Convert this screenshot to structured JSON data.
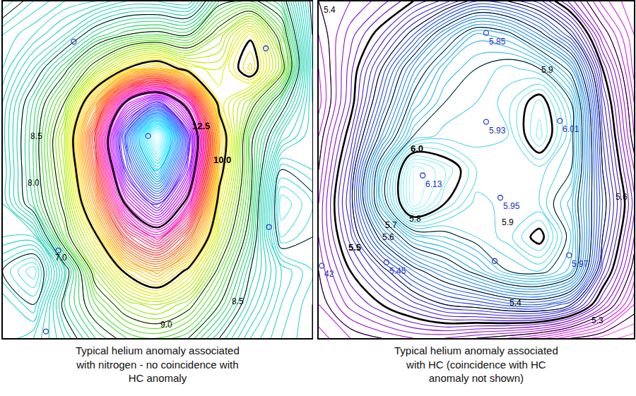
{
  "chart_data": [
    {
      "type": "contour",
      "caption": "Typical helium anomaly associated with nitrogen - no coincidence with HC anomaly",
      "xlim": [
        0,
        10
      ],
      "ylim": [
        0,
        10
      ],
      "tick_labels": false,
      "x": [
        0,
        1,
        2,
        3,
        4,
        5,
        6,
        7,
        8,
        9,
        10
      ],
      "y": [
        0,
        1,
        2,
        3,
        4,
        5,
        6,
        7,
        8,
        9,
        10
      ],
      "z": [
        [
          7.2,
          7.4,
          7.8,
          8.3,
          8.6,
          8.7,
          8.5,
          8.0,
          7.5,
          7.2,
          7.0
        ],
        [
          7.3,
          7.0,
          8.1,
          8.7,
          9.2,
          9.4,
          9.1,
          8.5,
          7.8,
          7.3,
          7.0
        ],
        [
          7.0,
          6.6,
          7.8,
          9.2,
          10.1,
          10.6,
          9.9,
          8.9,
          8.0,
          7.4,
          7.1
        ],
        [
          7.4,
          7.4,
          8.8,
          9.9,
          11.4,
          12.1,
          11.1,
          9.4,
          8.3,
          6.8,
          7.0
        ],
        [
          7.5,
          8.2,
          9.1,
          10.7,
          12.6,
          13.5,
          12.3,
          9.8,
          8.5,
          6.6,
          6.9
        ],
        [
          7.5,
          8.3,
          9.3,
          11.2,
          13.5,
          14.9,
          13.1,
          10.2,
          8.6,
          7.0,
          7.2
        ],
        [
          7.55,
          8.3,
          9.4,
          11.5,
          13.9,
          16.0,
          13.4,
          10.4,
          8.6,
          7.6,
          7.2
        ],
        [
          7.5,
          8.2,
          9.0,
          10.6,
          12.6,
          13.4,
          12.2,
          9.8,
          9.2,
          8.2,
          7.2
        ],
        [
          7.3,
          7.8,
          8.4,
          9.2,
          10.0,
          10.4,
          9.8,
          9.6,
          10.25,
          9.2,
          7.1
        ],
        [
          7.2,
          7.4,
          7.7,
          8.2,
          8.5,
          8.6,
          8.5,
          9.2,
          9.95,
          8.8,
          7.0
        ],
        [
          6.8,
          7.1,
          7.3,
          7.4,
          7.6,
          7.6,
          7.5,
          8.4,
          8.6,
          8.2,
          6.9
        ]
      ],
      "zlim": [
        6.0,
        16.0
      ],
      "levels": {
        "start": 6.0,
        "end": 16.0,
        "size": 0.1
      },
      "major_levels": [
        10.0,
        12.5
      ],
      "black_levels": [
        7.0,
        8.0,
        8.5,
        9.0
      ],
      "contour_labels": [
        {
          "value": 12.5,
          "label": "12.5",
          "x": 6.4,
          "y": 6.3
        },
        {
          "value": 10.0,
          "label": "10.0",
          "x": 7.1,
          "y": 5.3
        },
        {
          "value": 8.0,
          "label": "8.0",
          "x": 1.0,
          "y": 4.6
        },
        {
          "value": 8.5,
          "label": "8.5",
          "x": 1.1,
          "y": 6.0
        },
        {
          "value": 7.0,
          "label": "7.0",
          "x": 1.9,
          "y": 2.4
        },
        {
          "value": 9.0,
          "label": "9.0",
          "x": 5.3,
          "y": 0.4
        },
        {
          "value": 8.5,
          "label": "8.5",
          "x": 7.6,
          "y": 1.1
        }
      ],
      "points": [
        {
          "x": 8.5,
          "y": 8.6
        },
        {
          "x": 4.7,
          "y": 6.0
        },
        {
          "x": 2.3,
          "y": 8.8
        },
        {
          "x": 1.8,
          "y": 2.6
        },
        {
          "x": 8.6,
          "y": 3.3
        },
        {
          "x": 1.4,
          "y": 0.2
        }
      ]
    },
    {
      "type": "contour",
      "caption": "Typical helium anomaly associated with HC (coincidence with HC anomaly not shown)",
      "xlim": [
        0,
        10
      ],
      "ylim": [
        0,
        10
      ],
      "tick_labels": false,
      "x": [
        0,
        1,
        2,
        3,
        4,
        5,
        6,
        7,
        8,
        9,
        10
      ],
      "y": [
        0,
        1,
        2,
        3,
        4,
        5,
        6,
        7,
        8,
        9,
        10
      ],
      "z": [
        [
          5.35,
          5.38,
          5.4,
          5.42,
          5.42,
          5.4,
          5.38,
          5.35,
          5.3,
          5.27,
          5.25
        ],
        [
          5.38,
          5.45,
          5.5,
          5.55,
          5.6,
          5.62,
          5.65,
          5.66,
          5.6,
          5.45,
          5.32
        ],
        [
          5.4,
          5.5,
          5.58,
          5.68,
          5.75,
          5.82,
          5.9,
          5.92,
          5.85,
          5.55,
          5.38
        ],
        [
          5.42,
          5.55,
          5.72,
          5.85,
          5.88,
          5.92,
          5.95,
          6.02,
          5.88,
          5.6,
          5.42
        ],
        [
          5.42,
          5.58,
          5.86,
          6.1,
          6.0,
          5.93,
          5.95,
          5.94,
          5.85,
          5.62,
          5.45
        ],
        [
          5.4,
          5.56,
          5.85,
          6.1,
          6.04,
          5.96,
          5.95,
          5.95,
          5.9,
          5.6,
          5.42
        ],
        [
          5.38,
          5.52,
          5.72,
          5.9,
          5.93,
          5.93,
          5.94,
          6.05,
          5.92,
          5.58,
          5.38
        ],
        [
          5.35,
          5.48,
          5.65,
          5.82,
          5.9,
          5.92,
          5.95,
          6.03,
          5.9,
          5.55,
          5.36
        ],
        [
          5.36,
          5.47,
          5.6,
          5.75,
          5.86,
          5.9,
          5.93,
          5.9,
          5.78,
          5.5,
          5.33
        ],
        [
          5.38,
          5.45,
          5.52,
          5.62,
          5.75,
          5.85,
          5.82,
          5.72,
          5.6,
          5.42,
          5.32
        ],
        [
          5.4,
          5.42,
          5.45,
          5.5,
          5.55,
          5.62,
          5.6,
          5.55,
          5.45,
          5.35,
          5.3
        ]
      ],
      "zlim": [
        5.2,
        6.2
      ],
      "levels": {
        "start": 5.2,
        "end": 6.2,
        "size": 0.02
      },
      "major_levels": [
        5.5,
        6.0
      ],
      "black_levels": [
        5.3,
        5.4,
        5.6,
        5.7,
        5.8,
        5.9
      ],
      "contour_labels": [
        {
          "value": 6.0,
          "label": "6.0",
          "x": 3.12,
          "y": 5.63
        },
        {
          "value": 5.9,
          "label": "5.9",
          "x": 7.26,
          "y": 7.96
        },
        {
          "value": 5.9,
          "label": "5.9",
          "x": 6.0,
          "y": 3.44
        },
        {
          "value": 5.8,
          "label": "5.8",
          "x": 3.05,
          "y": 3.55
        },
        {
          "value": 5.7,
          "label": "5.7",
          "x": 2.3,
          "y": 3.35
        },
        {
          "value": 5.6,
          "label": "5.6",
          "x": 2.2,
          "y": 3.0
        },
        {
          "value": 5.5,
          "label": "5.5",
          "x": 1.15,
          "y": 2.7
        },
        {
          "value": 5.4,
          "label": "5.4",
          "x": 6.25,
          "y": 1.04
        },
        {
          "value": 5.3,
          "label": "5.3",
          "x": 8.83,
          "y": 0.52
        },
        {
          "value": 5.4,
          "label": "5.4",
          "x": 0.35,
          "y": 9.75
        },
        {
          "value": 5.6,
          "label": "5.6",
          "x": 9.6,
          "y": 4.2
        }
      ],
      "points": [
        {
          "x": 5.31,
          "y": 9.06,
          "label": "5.85"
        },
        {
          "x": 5.31,
          "y": 6.42,
          "label": "5.93"
        },
        {
          "x": 7.65,
          "y": 6.45,
          "label": "6.01"
        },
        {
          "x": 3.3,
          "y": 4.83,
          "label": "6.13"
        },
        {
          "x": 5.76,
          "y": 4.17,
          "label": "5.95"
        },
        {
          "x": 7.94,
          "y": 2.46,
          "label": "5.97"
        },
        {
          "x": 2.15,
          "y": 2.25,
          "label": "5.45"
        },
        {
          "x": 0.1,
          "y": 2.15,
          "label": "42"
        },
        {
          "x": 5.58,
          "y": 2.29
        }
      ]
    }
  ]
}
